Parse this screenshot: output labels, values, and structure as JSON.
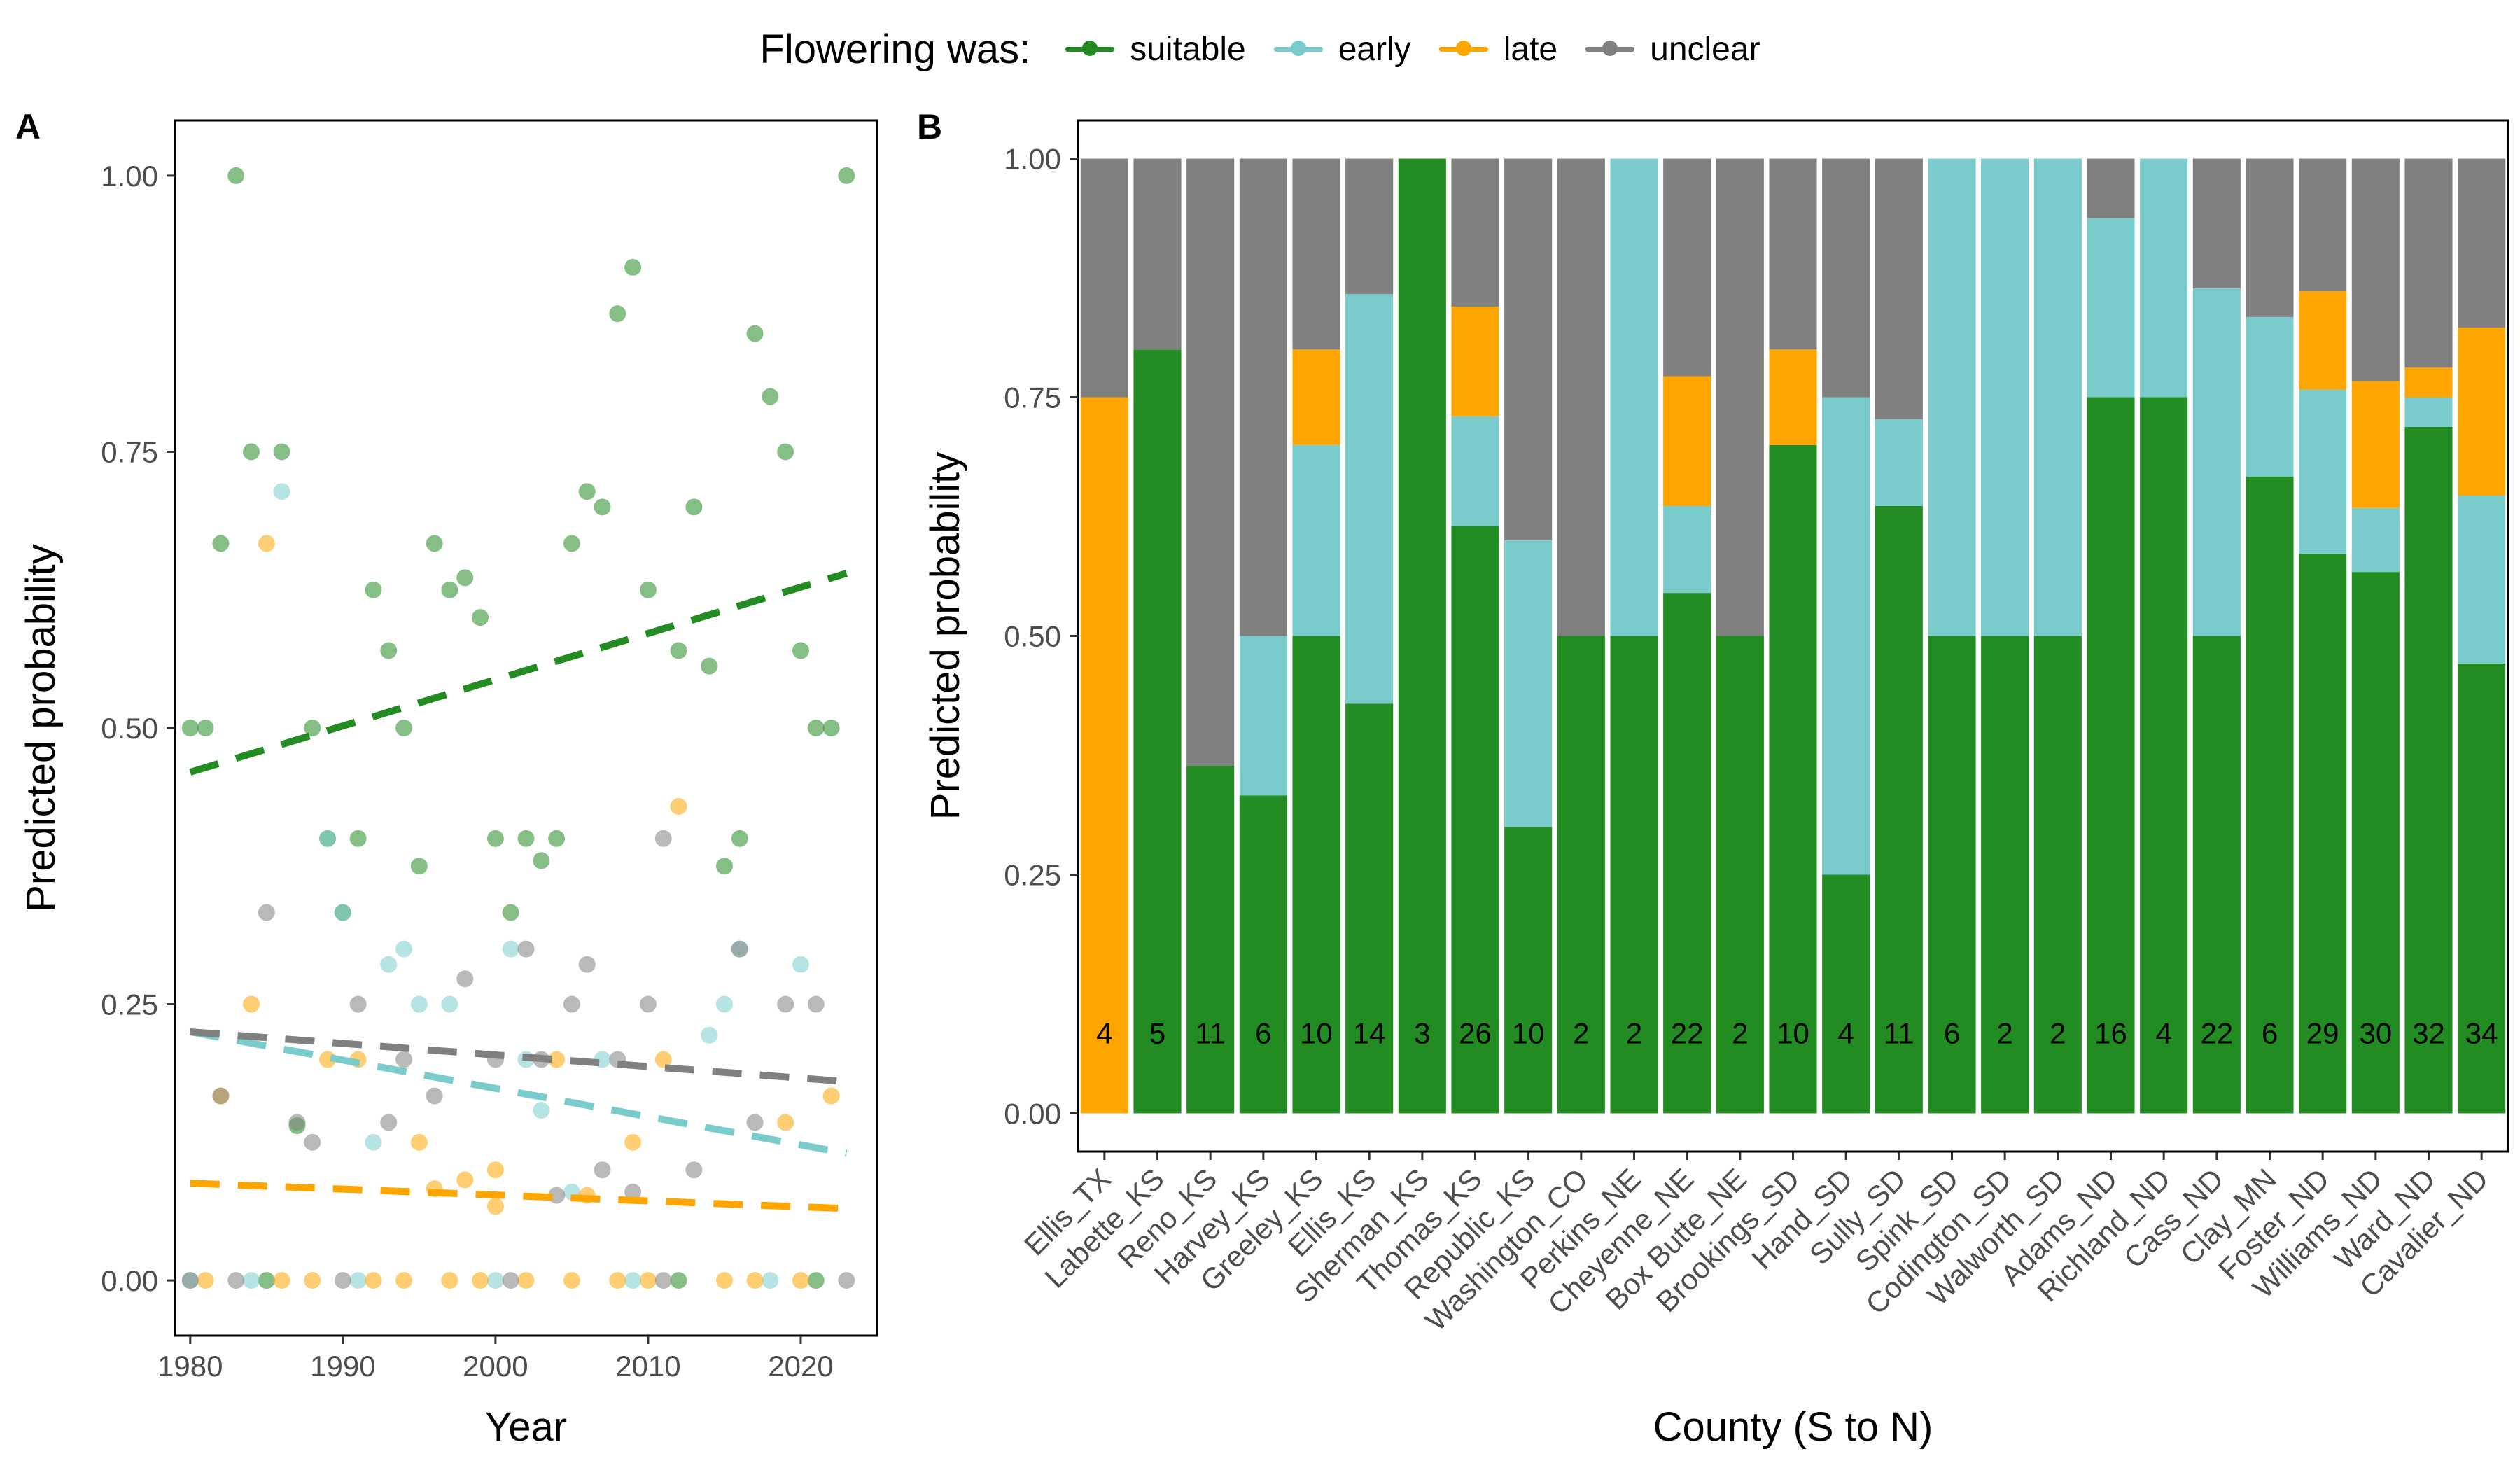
{
  "legend": {
    "title": "Flowering was:",
    "items": [
      {
        "label": "suitable",
        "color": "#228B22"
      },
      {
        "label": "early",
        "color": "#7ACCCC"
      },
      {
        "label": "late",
        "color": "#FFA500"
      },
      {
        "label": "unclear",
        "color": "#808080"
      }
    ]
  },
  "chart_data": [
    {
      "type": "scatter",
      "panel_label": "A",
      "xlabel": "Year",
      "ylabel": "Predicted probability",
      "xlim": [
        1979,
        2025
      ],
      "ylim": [
        -0.05,
        1.05
      ],
      "xticks": [
        1980,
        1990,
        2000,
        2010,
        2020
      ],
      "yticks": [
        "0.00",
        "0.25",
        "0.50",
        "0.75",
        "1.00"
      ],
      "grid": false,
      "series": [
        {
          "name": "suitable",
          "color": "#228B22",
          "trend": {
            "x": [
              1980,
              2023
            ],
            "y": [
              0.46,
              0.64
            ]
          },
          "points": [
            [
              1980,
              0.5
            ],
            [
              1981,
              0.5
            ],
            [
              1982,
              0.667
            ],
            [
              1983,
              1.0
            ],
            [
              1984,
              0.75
            ],
            [
              1986,
              0.75
            ],
            [
              1987,
              0.14
            ],
            [
              1988,
              0.5
            ],
            [
              1989,
              0.4
            ],
            [
              1990,
              0.333
            ],
            [
              1991,
              0.4
            ],
            [
              1992,
              0.625
            ],
            [
              1993,
              0.57
            ],
            [
              1994,
              0.5
            ],
            [
              1995,
              0.375
            ],
            [
              1996,
              0.667
            ],
            [
              1997,
              0.625
            ],
            [
              1998,
              0.636
            ],
            [
              1999,
              0.6
            ],
            [
              2000,
              0.4
            ],
            [
              2001,
              0.333
            ],
            [
              2002,
              0.4
            ],
            [
              2003,
              0.38
            ],
            [
              2004,
              0.4
            ],
            [
              2005,
              0.667
            ],
            [
              2006,
              0.714
            ],
            [
              2007,
              0.7
            ],
            [
              2008,
              0.875
            ],
            [
              2009,
              0.917
            ],
            [
              2010,
              0.625
            ],
            [
              2012,
              0.57
            ],
            [
              2013,
              0.7
            ],
            [
              2014,
              0.556
            ],
            [
              2015,
              0.375
            ],
            [
              2016,
              0.4
            ],
            [
              2017,
              0.857
            ],
            [
              2018,
              0.8
            ],
            [
              2019,
              0.75
            ],
            [
              2020,
              0.57
            ],
            [
              2021,
              0.5
            ],
            [
              2022,
              0.5
            ],
            [
              2023,
              1.0
            ],
            [
              1985,
              0.0
            ],
            [
              2012,
              0.0
            ],
            [
              2021,
              0.0
            ]
          ]
        },
        {
          "name": "early",
          "color": "#7ACCCC",
          "trend": {
            "x": [
              1980,
              2023
            ],
            "y": [
              0.225,
              0.115
            ]
          },
          "points": [
            [
              1986,
              0.714
            ],
            [
              1989,
              0.4
            ],
            [
              1990,
              0.333
            ],
            [
              1992,
              0.125
            ],
            [
              1993,
              0.286
            ],
            [
              1994,
              0.3
            ],
            [
              1995,
              0.25
            ],
            [
              1997,
              0.25
            ],
            [
              2001,
              0.3
            ],
            [
              2002,
              0.2
            ],
            [
              2003,
              0.154
            ],
            [
              2005,
              0.08
            ],
            [
              2007,
              0.2
            ],
            [
              2014,
              0.222
            ],
            [
              2015,
              0.25
            ],
            [
              2016,
              0.3
            ],
            [
              2020,
              0.286
            ],
            [
              1980,
              0.0
            ],
            [
              1984,
              0.0
            ],
            [
              1991,
              0.0
            ],
            [
              2000,
              0.0
            ],
            [
              2009,
              0.0
            ],
            [
              2018,
              0.0
            ]
          ]
        },
        {
          "name": "late",
          "color": "#FFA500",
          "trend": {
            "x": [
              1980,
              2023
            ],
            "y": [
              0.088,
              0.065
            ]
          },
          "points": [
            [
              1982,
              0.167
            ],
            [
              1984,
              0.25
            ],
            [
              1985,
              0.667
            ],
            [
              1989,
              0.2
            ],
            [
              1991,
              0.2
            ],
            [
              1995,
              0.125
            ],
            [
              1996,
              0.083
            ],
            [
              1998,
              0.091
            ],
            [
              2000,
              0.1
            ],
            [
              2000,
              0.067
            ],
            [
              2004,
              0.2
            ],
            [
              2006,
              0.077
            ],
            [
              2009,
              0.125
            ],
            [
              2011,
              0.2
            ],
            [
              2012,
              0.429
            ],
            [
              2019,
              0.143
            ],
            [
              2022,
              0.167
            ],
            [
              1981,
              0.0
            ],
            [
              1986,
              0.0
            ],
            [
              1988,
              0.0
            ],
            [
              1992,
              0.0
            ],
            [
              1994,
              0.0
            ],
            [
              1997,
              0.0
            ],
            [
              1999,
              0.0
            ],
            [
              2002,
              0.0
            ],
            [
              2005,
              0.0
            ],
            [
              2008,
              0.0
            ],
            [
              2010,
              0.0
            ],
            [
              2015,
              0.0
            ],
            [
              2017,
              0.0
            ],
            [
              2020,
              0.0
            ]
          ]
        },
        {
          "name": "unclear",
          "color": "#808080",
          "trend": {
            "x": [
              1980,
              2023
            ],
            "y": [
              0.225,
              0.18
            ]
          },
          "points": [
            [
              1982,
              0.167
            ],
            [
              1985,
              0.333
            ],
            [
              1987,
              0.143
            ],
            [
              1988,
              0.125
            ],
            [
              1991,
              0.25
            ],
            [
              1993,
              0.143
            ],
            [
              1994,
              0.2
            ],
            [
              1996,
              0.167
            ],
            [
              1998,
              0.273
            ],
            [
              2000,
              0.2
            ],
            [
              2002,
              0.3
            ],
            [
              2003,
              0.2
            ],
            [
              2004,
              0.077
            ],
            [
              2005,
              0.25
            ],
            [
              2006,
              0.286
            ],
            [
              2007,
              0.1
            ],
            [
              2008,
              0.2
            ],
            [
              2009,
              0.08
            ],
            [
              2010,
              0.25
            ],
            [
              2011,
              0.4
            ],
            [
              2013,
              0.1
            ],
            [
              2016,
              0.3
            ],
            [
              2017,
              0.143
            ],
            [
              2019,
              0.25
            ],
            [
              2021,
              0.25
            ],
            [
              1980,
              0.0
            ],
            [
              1983,
              0.0
            ],
            [
              1990,
              0.0
            ],
            [
              2001,
              0.0
            ],
            [
              2011,
              0.0
            ],
            [
              2023,
              0.0
            ]
          ]
        }
      ]
    },
    {
      "type": "bar",
      "stacked": true,
      "panel_label": "B",
      "xlabel": "County (S to N)",
      "ylabel": "Predicted probability",
      "ylim": [
        -0.04,
        1.04
      ],
      "yticks": [
        "0.00",
        "0.25",
        "0.50",
        "0.75",
        "1.00"
      ],
      "grid": false,
      "categories": [
        "Ellis_TX",
        "Labette_KS",
        "Reno_KS",
        "Harvey_KS",
        "Greeley_KS",
        "Ellis_KS",
        "Sherman_KS",
        "Thomas_KS",
        "Republic_KS",
        "Washington_CO",
        "Perkins_NE",
        "Cheyenne_NE",
        "Box Butte_NE",
        "Brookings_SD",
        "Hand_SD",
        "Sully_SD",
        "Spink_SD",
        "Codington_SD",
        "Walworth_SD",
        "Adams_ND",
        "Richland_ND",
        "Cass_ND",
        "Clay_MN",
        "Foster_ND",
        "Williams_ND",
        "Ward_ND",
        "Cavalier_ND"
      ],
      "counts": [
        "4",
        "5",
        "11",
        "6",
        "10",
        "14",
        "3",
        "26",
        "10",
        "2",
        "2",
        "22",
        "2",
        "10",
        "4",
        "11",
        "6",
        "2",
        "2",
        "16",
        "4",
        "22",
        "6",
        "29",
        "30",
        "32",
        "34"
      ],
      "series": [
        {
          "name": "suitable",
          "color": "#228B22",
          "values": [
            0,
            0.8,
            0.364,
            0.333,
            0.5,
            0.429,
            1.0,
            0.615,
            0.3,
            0.5,
            0.5,
            0.545,
            0.5,
            0.7,
            0.25,
            0.636,
            0.5,
            0.5,
            0.5,
            0.75,
            0.75,
            0.5,
            0.667,
            0.586,
            0.567,
            0.719,
            0.471
          ]
        },
        {
          "name": "early",
          "color": "#7ACCCC",
          "values": [
            0,
            0,
            0,
            0.167,
            0.2,
            0.429,
            0,
            0.115,
            0.3,
            0,
            0.5,
            0.091,
            0,
            0,
            0.5,
            0.091,
            0.5,
            0.5,
            0.5,
            0.1875,
            0.25,
            0.364,
            0.167,
            0.172,
            0.067,
            0.031,
            0.176
          ]
        },
        {
          "name": "late",
          "color": "#FFA500",
          "values": [
            0.75,
            0,
            0,
            0,
            0.1,
            0,
            0,
            0.115,
            0,
            0,
            0,
            0.136,
            0,
            0.1,
            0,
            0,
            0,
            0,
            0,
            0,
            0,
            0,
            0,
            0.103,
            0.133,
            0.031,
            0.176
          ]
        },
        {
          "name": "unclear",
          "color": "#808080",
          "values": [
            0.25,
            0.2,
            0.636,
            0.5,
            0.2,
            0.142,
            0,
            0.155,
            0.4,
            0.5,
            0,
            0.228,
            0.5,
            0.2,
            0.25,
            0.273,
            0,
            0,
            0,
            0.0625,
            0,
            0.136,
            0.166,
            0.139,
            0.233,
            0.219,
            0.177
          ]
        }
      ]
    }
  ]
}
